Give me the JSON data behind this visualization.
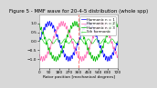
{
  "title": "Figure 5 - MMF wave for 20-4-5 distribution (whole spp)",
  "xlabel": "Rotor position [mechanical degrees]",
  "xlim": [
    0,
    720
  ],
  "ylim": [
    -1.5,
    1.5
  ],
  "xticks": [
    0,
    90,
    180,
    270,
    360,
    450,
    540,
    630,
    720
  ],
  "yticks": [
    -1,
    -0.5,
    0,
    0.5,
    1
  ],
  "bg_color": "#d8d8d8",
  "axes_color": "#ffffff",
  "grid_color": "#ffffff",
  "legend_labels": [
    "Harmonic n = 1",
    "Harmonic n = 2",
    "Harmonic n = 3",
    "5th harmonic"
  ],
  "color_blue": "#0000ff",
  "color_pink": "#ff69b4",
  "color_green": "#00bb00",
  "color_ripple_blue": "#4444ff",
  "color_ripple_green": "#00cc00",
  "vline_x": 360,
  "vline_color": "#ff8080",
  "amp_main": 1.0,
  "amp_ripple": 0.13,
  "ripple_freq": 20,
  "title_fontsize": 4.0,
  "tick_fontsize": 3.2,
  "legend_fontsize": 2.8,
  "xlabel_fontsize": 3.2
}
